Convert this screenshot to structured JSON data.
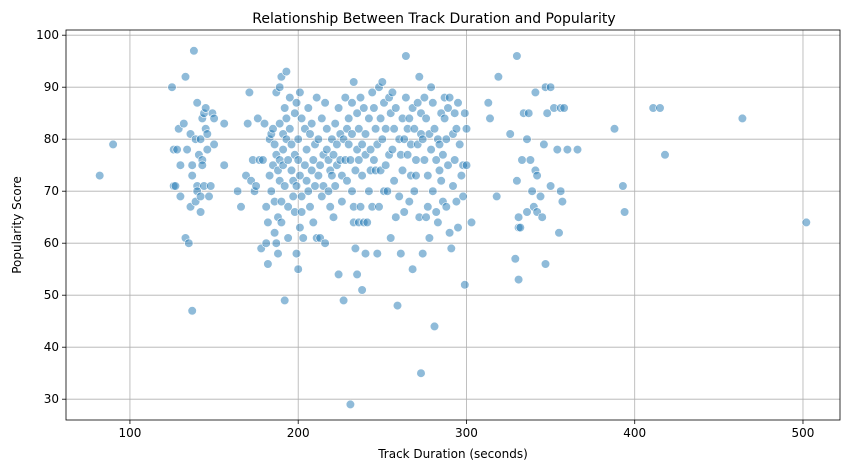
{
  "chart_data": {
    "type": "scatter",
    "title": "Relationship Between Track Duration and Popularity",
    "xlabel": "Track Duration (seconds)",
    "ylabel": "Popularity Score",
    "xlim": [
      62,
      522
    ],
    "ylim": [
      26,
      101
    ],
    "x_ticks": [
      100,
      200,
      300,
      400,
      500
    ],
    "y_ticks": [
      30,
      40,
      50,
      60,
      70,
      80,
      90,
      100
    ],
    "grid": true,
    "point_color": "#1f77b4",
    "point_opacity": 0.5,
    "points": [
      [
        82,
        73
      ],
      [
        90,
        79
      ],
      [
        125,
        90
      ],
      [
        126,
        78
      ],
      [
        126,
        71
      ],
      [
        127,
        71
      ],
      [
        128,
        78
      ],
      [
        129,
        82
      ],
      [
        130,
        75
      ],
      [
        130,
        69
      ],
      [
        132,
        83
      ],
      [
        133,
        92
      ],
      [
        133,
        61
      ],
      [
        134,
        78
      ],
      [
        135,
        60
      ],
      [
        136,
        81
      ],
      [
        136,
        67
      ],
      [
        137,
        75
      ],
      [
        137,
        73
      ],
      [
        137,
        47
      ],
      [
        138,
        97
      ],
      [
        139,
        80
      ],
      [
        139,
        68
      ],
      [
        140,
        87
      ],
      [
        140,
        71
      ],
      [
        140,
        70
      ],
      [
        141,
        77
      ],
      [
        142,
        69
      ],
      [
        142,
        66
      ],
      [
        142,
        80
      ],
      [
        143,
        76
      ],
      [
        143,
        84
      ],
      [
        143,
        75
      ],
      [
        144,
        85
      ],
      [
        144,
        71
      ],
      [
        145,
        82
      ],
      [
        145,
        86
      ],
      [
        146,
        78
      ],
      [
        146,
        81
      ],
      [
        147,
        69
      ],
      [
        148,
        71
      ],
      [
        149,
        85
      ],
      [
        150,
        84
      ],
      [
        150,
        79
      ],
      [
        156,
        83
      ],
      [
        156,
        75
      ],
      [
        164,
        70
      ],
      [
        166,
        67
      ],
      [
        169,
        73
      ],
      [
        170,
        83
      ],
      [
        171,
        89
      ],
      [
        172,
        72
      ],
      [
        173,
        76
      ],
      [
        174,
        70
      ],
      [
        175,
        71
      ],
      [
        176,
        84
      ],
      [
        177,
        76
      ],
      [
        178,
        59
      ],
      [
        179,
        76
      ],
      [
        180,
        83
      ],
      [
        181,
        67
      ],
      [
        181,
        60
      ],
      [
        182,
        56
      ],
      [
        182,
        64
      ],
      [
        183,
        80
      ],
      [
        183,
        73
      ],
      [
        184,
        81
      ],
      [
        184,
        70
      ],
      [
        185,
        82
      ],
      [
        185,
        75
      ],
      [
        186,
        79
      ],
      [
        186,
        68
      ],
      [
        186,
        62
      ],
      [
        187,
        89
      ],
      [
        187,
        77
      ],
      [
        187,
        60
      ],
      [
        188,
        74
      ],
      [
        188,
        65
      ],
      [
        188,
        58
      ],
      [
        189,
        90
      ],
      [
        189,
        83
      ],
      [
        189,
        76
      ],
      [
        189,
        72
      ],
      [
        190,
        92
      ],
      [
        190,
        68
      ],
      [
        190,
        64
      ],
      [
        191,
        81
      ],
      [
        191,
        78
      ],
      [
        191,
        75
      ],
      [
        192,
        86
      ],
      [
        192,
        71
      ],
      [
        192,
        49
      ],
      [
        193,
        93
      ],
      [
        193,
        84
      ],
      [
        193,
        80
      ],
      [
        194,
        76
      ],
      [
        194,
        67
      ],
      [
        194,
        61
      ],
      [
        195,
        88
      ],
      [
        195,
        82
      ],
      [
        196,
        79
      ],
      [
        196,
        74
      ],
      [
        197,
        72
      ],
      [
        197,
        69
      ],
      [
        198,
        85
      ],
      [
        198,
        77
      ],
      [
        198,
        66
      ],
      [
        199,
        87
      ],
      [
        199,
        71
      ],
      [
        199,
        58
      ],
      [
        200,
        80
      ],
      [
        200,
        76
      ],
      [
        200,
        55
      ],
      [
        201,
        89
      ],
      [
        201,
        73
      ],
      [
        201,
        63
      ],
      [
        202,
        84
      ],
      [
        202,
        69
      ],
      [
        202,
        66
      ],
      [
        203,
        61
      ],
      [
        204,
        82
      ],
      [
        204,
        75
      ],
      [
        205,
        78
      ],
      [
        205,
        72
      ],
      [
        206,
        86
      ],
      [
        206,
        70
      ],
      [
        207,
        81
      ],
      [
        207,
        67
      ],
      [
        208,
        83
      ],
      [
        208,
        74
      ],
      [
        209,
        76
      ],
      [
        209,
        64
      ],
      [
        210,
        79
      ],
      [
        210,
        71
      ],
      [
        211,
        88
      ],
      [
        211,
        61
      ],
      [
        212,
        80
      ],
      [
        212,
        73
      ],
      [
        213,
        75
      ],
      [
        213,
        61
      ],
      [
        214,
        84
      ],
      [
        214,
        69
      ],
      [
        215,
        77
      ],
      [
        215,
        71
      ],
      [
        216,
        87
      ],
      [
        216,
        60
      ],
      [
        217,
        82
      ],
      [
        217,
        78
      ],
      [
        218,
        76
      ],
      [
        218,
        70
      ],
      [
        219,
        74
      ],
      [
        219,
        67
      ],
      [
        220,
        80
      ],
      [
        220,
        73
      ],
      [
        221,
        77
      ],
      [
        221,
        65
      ],
      [
        222,
        83
      ],
      [
        222,
        71
      ],
      [
        223,
        79
      ],
      [
        223,
        75
      ],
      [
        224,
        86
      ],
      [
        224,
        54
      ],
      [
        225,
        81
      ],
      [
        225,
        76
      ],
      [
        226,
        73
      ],
      [
        226,
        68
      ],
      [
        227,
        80
      ],
      [
        227,
        49
      ],
      [
        228,
        88
      ],
      [
        228,
        76
      ],
      [
        229,
        82
      ],
      [
        229,
        72
      ],
      [
        230,
        84
      ],
      [
        230,
        79
      ],
      [
        231,
        76
      ],
      [
        231,
        29
      ],
      [
        232,
        87
      ],
      [
        232,
        81
      ],
      [
        232,
        70
      ],
      [
        233,
        91
      ],
      [
        233,
        67
      ],
      [
        233,
        64
      ],
      [
        234,
        59
      ],
      [
        234,
        74
      ],
      [
        235,
        85
      ],
      [
        235,
        78
      ],
      [
        235,
        54
      ],
      [
        236,
        82
      ],
      [
        236,
        76
      ],
      [
        236,
        64
      ],
      [
        237,
        88
      ],
      [
        237,
        67
      ],
      [
        238,
        79
      ],
      [
        238,
        73
      ],
      [
        238,
        51
      ],
      [
        239,
        86
      ],
      [
        239,
        64
      ],
      [
        240,
        81
      ],
      [
        240,
        77
      ],
      [
        240,
        58
      ],
      [
        241,
        64
      ],
      [
        242,
        84
      ],
      [
        242,
        70
      ],
      [
        243,
        78
      ],
      [
        243,
        74
      ],
      [
        244,
        89
      ],
      [
        244,
        67
      ],
      [
        245,
        86
      ],
      [
        245,
        76
      ],
      [
        246,
        82
      ],
      [
        246,
        74
      ],
      [
        247,
        79
      ],
      [
        247,
        58
      ],
      [
        248,
        90
      ],
      [
        248,
        67
      ],
      [
        249,
        84
      ],
      [
        249,
        74
      ],
      [
        250,
        91
      ],
      [
        250,
        80
      ],
      [
        251,
        87
      ],
      [
        251,
        70
      ],
      [
        252,
        82
      ],
      [
        252,
        75
      ],
      [
        253,
        70
      ],
      [
        254,
        88
      ],
      [
        254,
        77
      ],
      [
        255,
        85
      ],
      [
        255,
        61
      ],
      [
        256,
        89
      ],
      [
        256,
        78
      ],
      [
        257,
        82
      ],
      [
        257,
        72
      ],
      [
        258,
        86
      ],
      [
        258,
        65
      ],
      [
        259,
        48
      ],
      [
        260,
        80
      ],
      [
        260,
        69
      ],
      [
        261,
        77
      ],
      [
        261,
        58
      ],
      [
        262,
        84
      ],
      [
        262,
        74
      ],
      [
        263,
        80
      ],
      [
        263,
        66
      ],
      [
        264,
        96
      ],
      [
        264,
        88
      ],
      [
        265,
        82
      ],
      [
        265,
        77
      ],
      [
        266,
        84
      ],
      [
        266,
        68
      ],
      [
        267,
        79
      ],
      [
        267,
        73
      ],
      [
        268,
        86
      ],
      [
        268,
        55
      ],
      [
        269,
        82
      ],
      [
        269,
        70
      ],
      [
        270,
        76
      ],
      [
        270,
        73
      ],
      [
        271,
        87
      ],
      [
        271,
        79
      ],
      [
        272,
        92
      ],
      [
        272,
        65
      ],
      [
        273,
        85
      ],
      [
        273,
        81
      ],
      [
        273,
        35
      ],
      [
        274,
        80
      ],
      [
        274,
        58
      ],
      [
        275,
        88
      ],
      [
        275,
        76
      ],
      [
        276,
        84
      ],
      [
        276,
        65
      ],
      [
        277,
        73
      ],
      [
        277,
        67
      ],
      [
        278,
        81
      ],
      [
        278,
        61
      ],
      [
        279,
        90
      ],
      [
        279,
        78
      ],
      [
        280,
        87
      ],
      [
        280,
        70
      ],
      [
        281,
        82
      ],
      [
        281,
        44
      ],
      [
        282,
        76
      ],
      [
        282,
        66
      ],
      [
        283,
        80
      ],
      [
        283,
        64
      ],
      [
        284,
        79
      ],
      [
        284,
        74
      ],
      [
        285,
        85
      ],
      [
        285,
        72
      ],
      [
        286,
        77
      ],
      [
        286,
        68
      ],
      [
        287,
        88
      ],
      [
        287,
        84
      ],
      [
        288,
        80
      ],
      [
        288,
        67
      ],
      [
        289,
        86
      ],
      [
        289,
        75
      ],
      [
        290,
        88
      ],
      [
        290,
        62
      ],
      [
        291,
        59
      ],
      [
        292,
        81
      ],
      [
        292,
        71
      ],
      [
        293,
        85
      ],
      [
        293,
        76
      ],
      [
        294,
        82
      ],
      [
        294,
        68
      ],
      [
        295,
        87
      ],
      [
        295,
        63
      ],
      [
        296,
        79
      ],
      [
        297,
        73
      ],
      [
        298,
        75
      ],
      [
        298,
        69
      ],
      [
        299,
        85
      ],
      [
        299,
        52
      ],
      [
        300,
        82
      ],
      [
        300,
        75
      ],
      [
        303,
        64
      ],
      [
        313,
        87
      ],
      [
        314,
        84
      ],
      [
        318,
        69
      ],
      [
        319,
        92
      ],
      [
        326,
        81
      ],
      [
        329,
        57
      ],
      [
        330,
        96
      ],
      [
        330,
        72
      ],
      [
        331,
        65
      ],
      [
        331,
        63
      ],
      [
        331,
        53
      ],
      [
        332,
        63
      ],
      [
        333,
        76
      ],
      [
        334,
        85
      ],
      [
        336,
        80
      ],
      [
        336,
        66
      ],
      [
        337,
        85
      ],
      [
        338,
        76
      ],
      [
        339,
        70
      ],
      [
        340,
        67
      ],
      [
        341,
        89
      ],
      [
        341,
        74
      ],
      [
        342,
        73
      ],
      [
        342,
        66
      ],
      [
        344,
        69
      ],
      [
        345,
        65
      ],
      [
        346,
        79
      ],
      [
        347,
        90
      ],
      [
        347,
        56
      ],
      [
        348,
        85
      ],
      [
        350,
        90
      ],
      [
        350,
        71
      ],
      [
        352,
        86
      ],
      [
        354,
        78
      ],
      [
        355,
        62
      ],
      [
        356,
        86
      ],
      [
        356,
        70
      ],
      [
        357,
        68
      ],
      [
        358,
        86
      ],
      [
        360,
        78
      ],
      [
        366,
        78
      ],
      [
        388,
        82
      ],
      [
        393,
        71
      ],
      [
        394,
        66
      ],
      [
        411,
        86
      ],
      [
        415,
        86
      ],
      [
        418,
        77
      ],
      [
        464,
        84
      ],
      [
        502,
        64
      ]
    ]
  }
}
